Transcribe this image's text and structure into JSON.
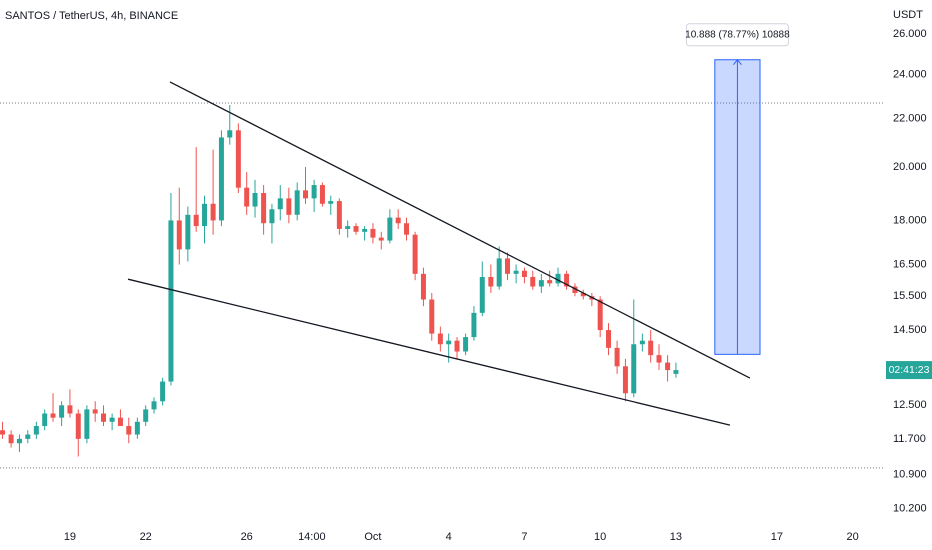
{
  "chart_data": {
    "type": "candlestick",
    "title": "SANTOS / TetherUS, 4h, BINANCE",
    "y_axis_label": "USDT",
    "up_color": "#26a69a",
    "down_color": "#ef5350",
    "log_scale": true,
    "grid": false,
    "x": [
      16.33,
      16.67,
      17,
      17.33,
      17.67,
      18,
      18.33,
      18.67,
      19,
      19.33,
      19.67,
      20,
      20.33,
      20.67,
      21,
      21.33,
      21.67,
      22,
      22.33,
      22.67,
      23,
      23.33,
      23.67,
      24,
      24.33,
      24.67,
      25,
      25.33,
      25.67,
      26,
      26.33,
      26.67,
      27,
      27.33,
      27.67,
      28,
      28.33,
      28.67,
      29,
      29.33,
      29.67,
      30,
      30.33,
      30.67,
      31,
      31.33,
      31.67,
      32,
      32.33,
      32.67,
      33,
      33.33,
      33.67,
      34,
      34.33,
      34.67,
      35,
      35.33,
      35.67,
      36,
      36.33,
      36.67,
      37,
      37.33,
      37.67,
      38,
      38.33,
      38.67,
      39,
      39.33,
      39.67,
      40,
      40.33,
      40.67,
      41,
      41.33,
      41.67,
      42,
      42.33,
      42.67,
      43
    ],
    "ohlc": [
      [
        11.9,
        12.1,
        11.7,
        11.8
      ],
      [
        11.8,
        11.9,
        11.5,
        11.6
      ],
      [
        11.6,
        11.8,
        11.4,
        11.7
      ],
      [
        11.7,
        11.9,
        11.6,
        11.8
      ],
      [
        11.8,
        12.1,
        11.7,
        12.0
      ],
      [
        12.0,
        12.4,
        11.9,
        12.3
      ],
      [
        12.3,
        12.8,
        12.1,
        12.2
      ],
      [
        12.2,
        12.6,
        12.0,
        12.5
      ],
      [
        12.5,
        12.9,
        12.2,
        12.3
      ],
      [
        12.3,
        12.4,
        11.3,
        11.7
      ],
      [
        11.7,
        12.5,
        11.6,
        12.4
      ],
      [
        12.4,
        12.6,
        12.1,
        12.3
      ],
      [
        12.3,
        12.5,
        12.0,
        12.1
      ],
      [
        12.1,
        12.3,
        11.9,
        12.2
      ],
      [
        12.2,
        12.4,
        12.0,
        12.0
      ],
      [
        12.0,
        12.2,
        11.6,
        11.8
      ],
      [
        11.8,
        12.2,
        11.7,
        12.1
      ],
      [
        12.1,
        12.5,
        12.0,
        12.4
      ],
      [
        12.4,
        12.7,
        12.3,
        12.6
      ],
      [
        12.6,
        13.2,
        12.5,
        13.1
      ],
      [
        13.1,
        19.0,
        13.0,
        18.0
      ],
      [
        18.0,
        19.2,
        16.5,
        17.0
      ],
      [
        17.0,
        18.5,
        16.6,
        18.2
      ],
      [
        18.2,
        20.8,
        17.6,
        17.8
      ],
      [
        17.8,
        18.9,
        17.2,
        18.6
      ],
      [
        18.6,
        20.7,
        17.5,
        18.0
      ],
      [
        18.0,
        21.5,
        17.8,
        21.2
      ],
      [
        21.2,
        22.6,
        20.9,
        21.5
      ],
      [
        21.5,
        21.8,
        19.0,
        19.2
      ],
      [
        19.2,
        19.8,
        18.2,
        18.5
      ],
      [
        18.5,
        19.5,
        18.1,
        19.0
      ],
      [
        19.0,
        19.3,
        17.5,
        17.9
      ],
      [
        17.9,
        18.6,
        17.2,
        18.4
      ],
      [
        18.4,
        19.3,
        18.0,
        18.8
      ],
      [
        18.8,
        19.2,
        17.9,
        18.2
      ],
      [
        18.2,
        19.4,
        18.0,
        19.1
      ],
      [
        19.1,
        20.0,
        18.6,
        18.8
      ],
      [
        18.8,
        19.5,
        18.3,
        19.3
      ],
      [
        19.3,
        19.4,
        18.5,
        18.6
      ],
      [
        18.6,
        18.9,
        18.2,
        18.7
      ],
      [
        18.7,
        18.8,
        17.5,
        17.7
      ],
      [
        17.7,
        18.0,
        17.4,
        17.8
      ],
      [
        17.8,
        17.9,
        17.5,
        17.6
      ],
      [
        17.6,
        17.8,
        17.3,
        17.7
      ],
      [
        17.7,
        17.9,
        17.2,
        17.4
      ],
      [
        17.4,
        17.6,
        17.0,
        17.3
      ],
      [
        17.3,
        18.4,
        17.2,
        18.1
      ],
      [
        18.1,
        18.4,
        17.7,
        17.9
      ],
      [
        17.9,
        18.1,
        17.3,
        17.5
      ],
      [
        17.5,
        17.6,
        16.0,
        16.2
      ],
      [
        16.2,
        16.4,
        15.2,
        15.4
      ],
      [
        15.4,
        15.6,
        14.2,
        14.4
      ],
      [
        14.4,
        14.6,
        13.9,
        14.1
      ],
      [
        14.1,
        14.4,
        13.6,
        14.2
      ],
      [
        14.2,
        14.3,
        13.7,
        13.9
      ],
      [
        13.9,
        14.4,
        13.8,
        14.3
      ],
      [
        14.3,
        15.2,
        14.2,
        15.0
      ],
      [
        15.0,
        16.6,
        14.9,
        16.1
      ],
      [
        16.1,
        16.5,
        15.6,
        15.8
      ],
      [
        15.8,
        17.1,
        15.7,
        16.7
      ],
      [
        16.7,
        16.9,
        16.0,
        16.2
      ],
      [
        16.2,
        16.5,
        15.9,
        16.3
      ],
      [
        16.3,
        16.4,
        15.9,
        16.1
      ],
      [
        16.1,
        16.3,
        15.7,
        15.8
      ],
      [
        15.8,
        16.2,
        15.6,
        16.0
      ],
      [
        16.0,
        16.3,
        15.8,
        15.9
      ],
      [
        15.9,
        16.4,
        15.8,
        16.2
      ],
      [
        16.2,
        16.3,
        15.7,
        15.8
      ],
      [
        15.8,
        15.9,
        15.5,
        15.6
      ],
      [
        15.6,
        15.7,
        15.4,
        15.5
      ],
      [
        15.5,
        15.6,
        15.2,
        15.4
      ],
      [
        15.4,
        15.5,
        14.3,
        14.5
      ],
      [
        14.5,
        14.7,
        13.8,
        14.0
      ],
      [
        14.0,
        14.2,
        13.3,
        13.5
      ],
      [
        13.5,
        13.7,
        12.6,
        12.8
      ],
      [
        12.8,
        15.4,
        12.7,
        14.1
      ],
      [
        14.1,
        14.4,
        13.9,
        14.2
      ],
      [
        14.2,
        14.5,
        13.6,
        13.8
      ],
      [
        13.8,
        14.1,
        13.4,
        13.6
      ],
      [
        13.6,
        13.8,
        13.1,
        13.4
      ],
      [
        13.3,
        13.6,
        13.2,
        13.4
      ]
    ],
    "xlim": [
      16.23,
      51.28
    ],
    "xticks": [
      19,
      22,
      26,
      {
        "value": 28.58,
        "label": "14:00"
      },
      {
        "value": 31,
        "label": "Oct"
      },
      {
        "value": 34,
        "label": "4"
      },
      {
        "value": 37,
        "label": "7"
      },
      {
        "value": 40,
        "label": "10"
      },
      {
        "value": 43,
        "label": "13"
      },
      {
        "value": 47,
        "label": "17"
      },
      {
        "value": 50,
        "label": "20"
      }
    ],
    "ylim": [
      9.97,
      27.8
    ],
    "yticks": [
      {
        "value": 26,
        "label": "26.000"
      },
      {
        "value": 24,
        "label": "24.000"
      },
      {
        "value": 22,
        "label": "22.000"
      },
      {
        "value": 20,
        "label": "20.000"
      },
      {
        "value": 18,
        "label": "18.000"
      },
      {
        "value": 16.5,
        "label": "16.500"
      },
      {
        "value": 15.5,
        "label": "15.500"
      },
      {
        "value": 14.5,
        "label": "14.500"
      },
      {
        "value": 12.5,
        "label": "12.500"
      },
      {
        "value": 11.7,
        "label": "11.700"
      },
      {
        "value": 10.9,
        "label": "10.900"
      },
      {
        "value": 10.2,
        "label": "10.200"
      }
    ],
    "countdown_label": "02:41:23",
    "drawings": {
      "trend_lines": [
        {
          "x": [
            22.96,
            45.93
          ],
          "y": [
            23.65,
            13.19
          ]
        },
        {
          "x": [
            21.3,
            45.14
          ],
          "y": [
            16.03,
            12.02
          ]
        }
      ],
      "horizontal_lines": [
        22.69,
        11.05
      ],
      "price_range": {
        "x": [
          44.54,
          46.33
        ],
        "y": [
          13.822,
          24.71
        ],
        "label": "10.888 (78.77%) 10888"
      }
    }
  }
}
